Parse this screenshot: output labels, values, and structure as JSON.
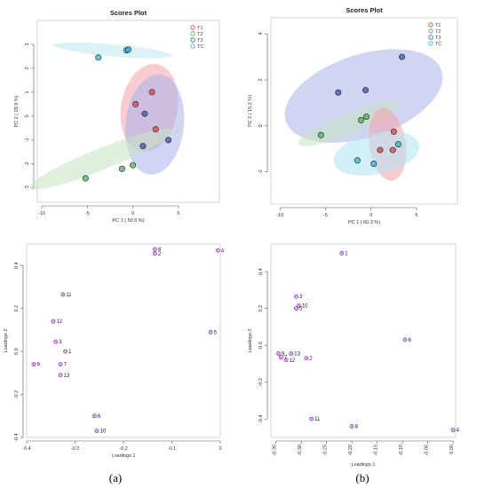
{
  "chart_data": [
    {
      "type": "scatter",
      "title": "Scores Plot",
      "xlabel": "PC 1 ( 50.6 %)",
      "ylabel": "PC 2 ( 29.9 %)",
      "xlim": [
        -10.5,
        9.5
      ],
      "ylim": [
        -3.6,
        4.0
      ],
      "xticks": [
        -10,
        -5,
        0,
        5
      ],
      "yticks": [
        -3,
        -2,
        -1,
        0,
        1,
        2,
        3
      ],
      "legend": [
        "T1",
        "T2",
        "T3",
        "TC"
      ],
      "colors": [
        "#e03c4b",
        "#4caf50",
        "#3f51b5",
        "#29b6d6"
      ],
      "series": [
        {
          "name": "T1",
          "points": [
            [
              2.1,
              1.0
            ],
            [
              0.3,
              0.5
            ],
            [
              2.5,
              -0.55
            ]
          ]
        },
        {
          "name": "T2",
          "points": [
            [
              -5.2,
              -2.6
            ],
            [
              -1.2,
              -2.2
            ],
            [
              0.0,
              -2.05
            ]
          ]
        },
        {
          "name": "T3",
          "points": [
            [
              1.3,
              0.1
            ],
            [
              3.9,
              -1.0
            ],
            [
              1.1,
              -1.25
            ]
          ]
        },
        {
          "name": "TC",
          "points": [
            [
              -3.8,
              2.45
            ],
            [
              -0.7,
              2.75
            ],
            [
              -0.5,
              2.78
            ]
          ]
        }
      ]
    },
    {
      "type": "scatter",
      "title": "Scores Plot",
      "xlabel": "PC 1 ( 60.3 %)",
      "ylabel": "PC 2 ( 15.2 %)",
      "xlim": [
        -11.0,
        9.5
      ],
      "ylim": [
        -3.4,
        4.7
      ],
      "xticks": [
        -10,
        -5,
        0,
        5
      ],
      "yticks": [
        -2,
        0,
        2,
        4
      ],
      "legend": [
        "T1",
        "T2",
        "T3",
        "TC"
      ],
      "colors": [
        "#e03c4b",
        "#4caf50",
        "#3f51b5",
        "#29b6d6"
      ],
      "series": [
        {
          "name": "T1",
          "points": [
            [
              2.5,
              -0.25
            ],
            [
              1.0,
              -1.05
            ],
            [
              2.4,
              -1.05
            ]
          ]
        },
        {
          "name": "T2",
          "points": [
            [
              -5.5,
              -0.4
            ],
            [
              -1.1,
              0.25
            ],
            [
              -0.5,
              0.4
            ]
          ]
        },
        {
          "name": "T3",
          "points": [
            [
              -3.6,
              1.45
            ],
            [
              -0.6,
              1.55
            ],
            [
              3.4,
              3.0
            ]
          ]
        },
        {
          "name": "TC",
          "points": [
            [
              -1.5,
              -1.5
            ],
            [
              0.3,
              -1.65
            ],
            [
              3.0,
              -0.8
            ]
          ]
        }
      ]
    },
    {
      "type": "scatter",
      "title": "",
      "xlabel": "Loadings 1",
      "ylabel": "Loadings 2",
      "xlim": [
        -0.4,
        0.0
      ],
      "ylim": [
        -0.4,
        0.5
      ],
      "xticks": [
        -0.4,
        -0.3,
        -0.2,
        -0.1,
        0.0
      ],
      "yticks": [
        -0.4,
        -0.2,
        0.0,
        0.2,
        0.4
      ],
      "points": [
        {
          "label": "1",
          "x": -0.32,
          "y": 0.0
        },
        {
          "label": "2",
          "x": -0.135,
          "y": 0.455
        },
        {
          "label": "3",
          "x": -0.34,
          "y": 0.045
        },
        {
          "label": "4",
          "x": -0.005,
          "y": 0.47
        },
        {
          "label": "5",
          "x": -0.02,
          "y": 0.09
        },
        {
          "label": "6",
          "x": -0.26,
          "y": -0.3
        },
        {
          "label": "7",
          "x": -0.33,
          "y": -0.06
        },
        {
          "label": "8",
          "x": -0.135,
          "y": 0.475
        },
        {
          "label": "9",
          "x": -0.385,
          "y": -0.06
        },
        {
          "label": "10",
          "x": -0.255,
          "y": -0.37
        },
        {
          "label": "11",
          "x": -0.325,
          "y": 0.265
        },
        {
          "label": "12",
          "x": -0.345,
          "y": 0.14
        },
        {
          "label": "13",
          "x": -0.33,
          "y": -0.11
        }
      ]
    },
    {
      "type": "scatter",
      "title": "",
      "xlabel": "Loadings 1",
      "ylabel": "Loadings 2",
      "xlim": [
        -0.36,
        0.005
      ],
      "ylim": [
        -0.5,
        0.55
      ],
      "xticks": [
        -0.35,
        -0.3,
        -0.25,
        -0.2,
        -0.15,
        -0.1,
        -0.05,
        0.0
      ],
      "ytick_labels": [
        "-0.4",
        "-0.2",
        "0.0",
        "0.2",
        "0.4"
      ],
      "yticks": [
        -0.4,
        -0.2,
        0.0,
        0.2,
        0.4
      ],
      "points": [
        {
          "label": "1",
          "x": -0.22,
          "y": 0.5
        },
        {
          "label": "2",
          "x": -0.29,
          "y": -0.07
        },
        {
          "label": "3",
          "x": -0.31,
          "y": 0.265
        },
        {
          "label": "4",
          "x": 0.0,
          "y": -0.46
        },
        {
          "label": "5",
          "x": -0.31,
          "y": 0.2
        },
        {
          "label": "6",
          "x": -0.095,
          "y": 0.03
        },
        {
          "label": "7",
          "x": -0.34,
          "y": -0.065
        },
        {
          "label": "8",
          "x": -0.2,
          "y": -0.44
        },
        {
          "label": "9",
          "x": -0.345,
          "y": -0.045
        },
        {
          "label": "10",
          "x": -0.305,
          "y": 0.215
        },
        {
          "label": "11",
          "x": -0.28,
          "y": -0.4
        },
        {
          "label": "12",
          "x": -0.33,
          "y": -0.08
        },
        {
          "label": "13",
          "x": -0.32,
          "y": -0.045
        }
      ]
    }
  ],
  "captions": [
    "(a)",
    "(b)"
  ]
}
